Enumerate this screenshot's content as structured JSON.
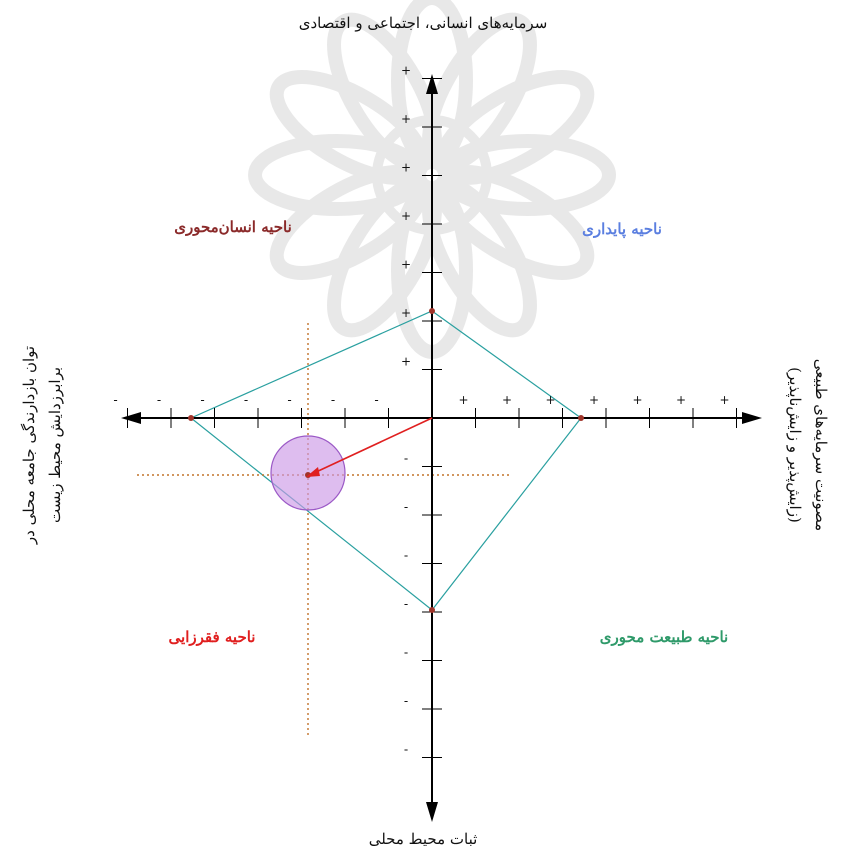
{
  "axes": {
    "top": "سرمایه‌های انسانی، اجتماعی و اقتصادی",
    "bottom": "ثبات محیط محلی",
    "left_line1": "توان بازدارندگی جامعه محلی در",
    "left_line2": "برابرزدایش محیط زیست",
    "right_line1": "مصونیت سرمایه‌های طبیعی",
    "right_line2": "(زایش‌پذیر و زایش‌ناپذیر)"
  },
  "zones": {
    "top_left": "ناحیه انسان‌محوری",
    "top_right": "ناحیه پایداری",
    "bottom_left": "ناحیه فقرزایی",
    "bottom_right": "ناحیه طبیعت محوری"
  },
  "ticks": {
    "positive_symbol": "+",
    "negative_symbol": "-",
    "x_left_count": 7,
    "x_right_count": 7,
    "y_top_count": 7,
    "y_bottom_count": 7
  },
  "colors": {
    "axis": "#000000",
    "diamond": "#2aa0a0",
    "vertex": "#a0342a",
    "vector": "#e02020",
    "circle_fill": "#cc99e6",
    "circle_stroke": "#9b59c6",
    "guide": "#c2732a",
    "zone_top_left": "#8b2a2a",
    "zone_top_right": "#5b7fe0",
    "zone_bottom_left": "#e01f1f",
    "zone_bottom_right": "#2f9a6a",
    "watermark": "#d6d6d6"
  }
}
